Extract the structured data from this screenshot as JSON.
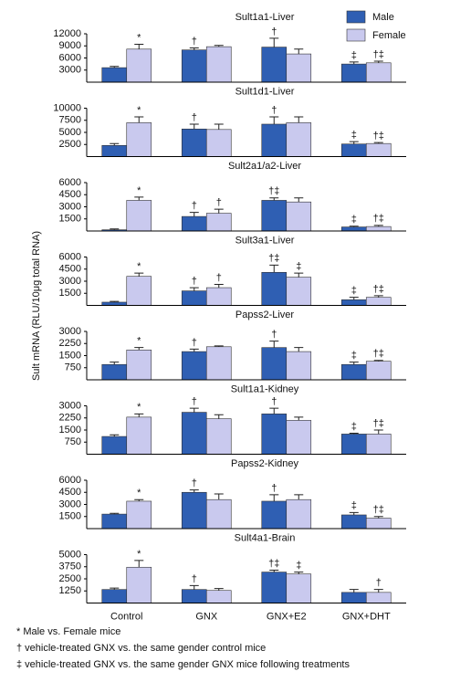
{
  "y_label": "Sult mRNA (RLU/10μg total RNA)",
  "footnotes": [
    "* Male vs. Female mice",
    "† vehicle-treated GNX vs. the same gender control mice",
    "‡ vehicle-treated GNX vs. the same gender GNX mice following treatments"
  ],
  "chart_data": [
    {
      "type": "bar",
      "title": "Sult1a1-Liver",
      "ylim": [
        0,
        12000
      ],
      "yticks": [
        3000,
        6000,
        9000,
        12000
      ],
      "series": [
        {
          "name": "Male",
          "color": "#2f5fb3",
          "values": [
            3600,
            8000,
            8700,
            4500
          ],
          "errors": [
            300,
            500,
            2200,
            500
          ],
          "markers": [
            null,
            "†",
            "†",
            "‡"
          ]
        },
        {
          "name": "Female",
          "color": "#c9c9ee",
          "values": [
            8200,
            8800,
            7000,
            4800
          ],
          "errors": [
            1200,
            300,
            1200,
            400
          ],
          "markers": [
            "*",
            null,
            null,
            "†‡"
          ]
        }
      ]
    },
    {
      "type": "bar",
      "title": "Sult1d1-Liver",
      "ylim": [
        0,
        10000
      ],
      "yticks": [
        2500,
        5000,
        7500,
        10000
      ],
      "series": [
        {
          "color": "#2f5fb3",
          "values": [
            2300,
            5700,
            6700,
            2600
          ],
          "errors": [
            400,
            1000,
            1500,
            500
          ],
          "markers": [
            null,
            "†",
            "†",
            "‡"
          ]
        },
        {
          "color": "#c9c9ee",
          "values": [
            7000,
            5600,
            7000,
            2700
          ],
          "errors": [
            1200,
            1100,
            1200,
            200
          ],
          "markers": [
            "*",
            null,
            null,
            "†‡"
          ]
        }
      ]
    },
    {
      "type": "bar",
      "title": "Sult2a1/a2-Liver",
      "ylim": [
        0,
        6000
      ],
      "yticks": [
        1500,
        3000,
        4500,
        6000
      ],
      "series": [
        {
          "color": "#2f5fb3",
          "values": [
            150,
            1800,
            3800,
            500
          ],
          "errors": [
            100,
            500,
            300,
            100
          ],
          "markers": [
            null,
            "†",
            "†‡",
            "‡"
          ]
        },
        {
          "color": "#c9c9ee",
          "values": [
            3800,
            2200,
            3600,
            550
          ],
          "errors": [
            400,
            500,
            500,
            150
          ],
          "markers": [
            "*",
            "†",
            null,
            "†‡"
          ]
        }
      ]
    },
    {
      "type": "bar",
      "title": "Sult3a1-Liver",
      "ylim": [
        0,
        6000
      ],
      "yticks": [
        1500,
        3000,
        4500,
        6000
      ],
      "series": [
        {
          "color": "#2f5fb3",
          "values": [
            400,
            1800,
            4100,
            700
          ],
          "errors": [
            100,
            400,
            900,
            300
          ],
          "markers": [
            null,
            "†",
            "†‡",
            "‡"
          ]
        },
        {
          "color": "#c9c9ee",
          "values": [
            3600,
            2200,
            3500,
            1000
          ],
          "errors": [
            400,
            400,
            500,
            200
          ],
          "markers": [
            "*",
            "†",
            "‡",
            "†‡"
          ]
        }
      ]
    },
    {
      "type": "bar",
      "title": "Papss2-Liver",
      "ylim": [
        0,
        3000
      ],
      "yticks": [
        750,
        1500,
        2250,
        3000
      ],
      "series": [
        {
          "color": "#2f5fb3",
          "values": [
            950,
            1750,
            2000,
            950
          ],
          "errors": [
            150,
            150,
            400,
            150
          ],
          "markers": [
            null,
            "†",
            "†",
            "‡"
          ]
        },
        {
          "color": "#c9c9ee",
          "values": [
            1850,
            2050,
            1750,
            1150
          ],
          "errors": [
            150,
            50,
            250,
            50
          ],
          "markers": [
            "*",
            null,
            null,
            "†‡"
          ]
        }
      ]
    },
    {
      "type": "bar",
      "title": "Sult1a1-Kidney",
      "ylim": [
        0,
        3000
      ],
      "yticks": [
        750,
        1500,
        2250,
        3000
      ],
      "series": [
        {
          "color": "#2f5fb3",
          "values": [
            1100,
            2600,
            2500,
            1250
          ],
          "errors": [
            100,
            250,
            350,
            50
          ],
          "markers": [
            null,
            "†",
            "†",
            "‡"
          ]
        },
        {
          "color": "#c9c9ee",
          "values": [
            2300,
            2200,
            2100,
            1250
          ],
          "errors": [
            200,
            250,
            200,
            250
          ],
          "markers": [
            "*",
            null,
            null,
            "†‡"
          ]
        }
      ]
    },
    {
      "type": "bar",
      "title": "Papss2-Kidney",
      "ylim": [
        0,
        6000
      ],
      "yticks": [
        1500,
        3000,
        4500,
        6000
      ],
      "series": [
        {
          "color": "#2f5fb3",
          "values": [
            1800,
            4500,
            3400,
            1700
          ],
          "errors": [
            100,
            300,
            800,
            300
          ],
          "markers": [
            null,
            "†",
            "†",
            "‡"
          ]
        },
        {
          "color": "#c9c9ee",
          "values": [
            3400,
            3600,
            3600,
            1300
          ],
          "errors": [
            200,
            700,
            600,
            200
          ],
          "markers": [
            "*",
            null,
            null,
            "†‡"
          ]
        }
      ]
    },
    {
      "type": "bar",
      "title": "Sult4a1-Brain",
      "ylim": [
        0,
        5000
      ],
      "yticks": [
        1250,
        2500,
        3750,
        5000
      ],
      "categories": [
        "Control",
        "GNX",
        "GNX+E2",
        "GNX+DHT"
      ],
      "series": [
        {
          "color": "#2f5fb3",
          "values": [
            1400,
            1400,
            3200,
            1100
          ],
          "errors": [
            150,
            400,
            200,
            300
          ],
          "markers": [
            null,
            "†",
            "†‡",
            null
          ]
        },
        {
          "color": "#c9c9ee",
          "values": [
            3700,
            1300,
            3000,
            1100
          ],
          "errors": [
            700,
            200,
            200,
            300
          ],
          "markers": [
            "*",
            null,
            "‡",
            "†"
          ]
        }
      ]
    }
  ]
}
